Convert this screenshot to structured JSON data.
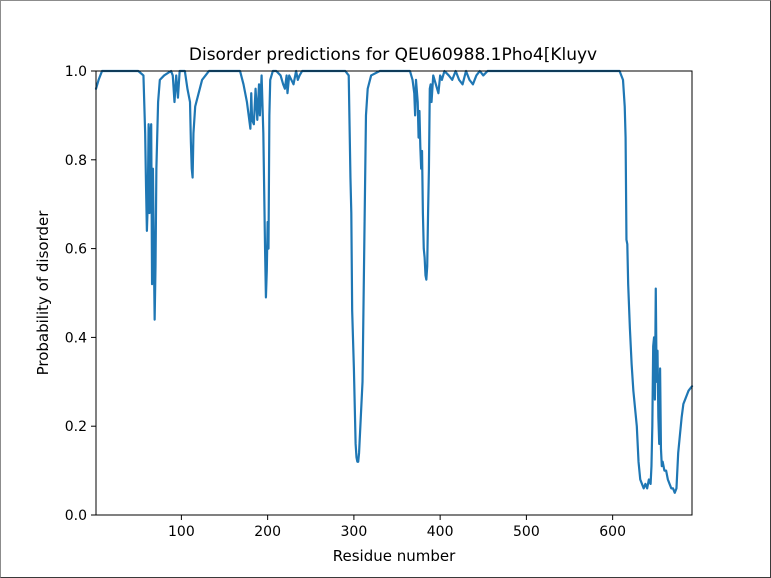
{
  "chart_data": {
    "type": "line",
    "title": "Disorder predictions for QEU60988.1Pho4[Kluyv",
    "xlabel": "Residue number",
    "ylabel": "Probability of disorder",
    "xlim": [
      1,
      692
    ],
    "ylim": [
      0.0,
      1.0
    ],
    "xticks": [
      100,
      200,
      300,
      400,
      500,
      600
    ],
    "yticks": [
      0.0,
      0.2,
      0.4,
      0.6,
      0.8,
      1.0
    ],
    "grid": false,
    "legend": "none",
    "series": [
      {
        "color": "#1f77b4",
        "points": [
          [
            1,
            0.96
          ],
          [
            4,
            0.98
          ],
          [
            8,
            1.0
          ],
          [
            50,
            1.0
          ],
          [
            56,
            0.99
          ],
          [
            58,
            0.86
          ],
          [
            59,
            0.74
          ],
          [
            60,
            0.64
          ],
          [
            61,
            0.7
          ],
          [
            62,
            0.88
          ],
          [
            63,
            0.68
          ],
          [
            64,
            0.86
          ],
          [
            65,
            0.88
          ],
          [
            66,
            0.52
          ],
          [
            67,
            0.78
          ],
          [
            68,
            0.6
          ],
          [
            69,
            0.44
          ],
          [
            70,
            0.56
          ],
          [
            71,
            0.78
          ],
          [
            73,
            0.93
          ],
          [
            75,
            0.98
          ],
          [
            80,
            0.99
          ],
          [
            88,
            1.0
          ],
          [
            90,
            0.99
          ],
          [
            92,
            0.93
          ],
          [
            94,
            0.99
          ],
          [
            96,
            0.94
          ],
          [
            98,
            1.0
          ],
          [
            104,
            1.0
          ],
          [
            107,
            0.96
          ],
          [
            110,
            0.93
          ],
          [
            111,
            0.84
          ],
          [
            112,
            0.78
          ],
          [
            113,
            0.76
          ],
          [
            114,
            0.86
          ],
          [
            116,
            0.92
          ],
          [
            120,
            0.95
          ],
          [
            124,
            0.98
          ],
          [
            128,
            0.99
          ],
          [
            132,
            1.0
          ],
          [
            168,
            1.0
          ],
          [
            172,
            0.97
          ],
          [
            176,
            0.93
          ],
          [
            178,
            0.9
          ],
          [
            180,
            0.87
          ],
          [
            181,
            0.95
          ],
          [
            182,
            0.89
          ],
          [
            184,
            0.88
          ],
          [
            186,
            0.96
          ],
          [
            188,
            0.89
          ],
          [
            190,
            0.97
          ],
          [
            191,
            0.9
          ],
          [
            193,
            0.99
          ],
          [
            195,
            0.86
          ],
          [
            197,
            0.6
          ],
          [
            198,
            0.49
          ],
          [
            199,
            0.55
          ],
          [
            200,
            0.66
          ],
          [
            201,
            0.6
          ],
          [
            202,
            0.9
          ],
          [
            203,
            0.98
          ],
          [
            206,
            1.0
          ],
          [
            210,
            1.0
          ],
          [
            215,
            0.99
          ],
          [
            218,
            0.97
          ],
          [
            220,
            0.96
          ],
          [
            222,
            0.99
          ],
          [
            223,
            0.95
          ],
          [
            225,
            0.99
          ],
          [
            230,
            0.97
          ],
          [
            233,
            1.0
          ],
          [
            235,
            0.98
          ],
          [
            237,
            0.99
          ],
          [
            240,
            1.0
          ],
          [
            290,
            1.0
          ],
          [
            294,
            0.99
          ],
          [
            296,
            0.76
          ],
          [
            297,
            0.68
          ],
          [
            298,
            0.46
          ],
          [
            300,
            0.33
          ],
          [
            302,
            0.16
          ],
          [
            303,
            0.13
          ],
          [
            304,
            0.12
          ],
          [
            305,
            0.12
          ],
          [
            306,
            0.14
          ],
          [
            308,
            0.22
          ],
          [
            310,
            0.3
          ],
          [
            312,
            0.6
          ],
          [
            314,
            0.9
          ],
          [
            316,
            0.96
          ],
          [
            320,
            0.99
          ],
          [
            330,
            1.0
          ],
          [
            365,
            1.0
          ],
          [
            368,
            0.98
          ],
          [
            370,
            0.95
          ],
          [
            371,
            0.9
          ],
          [
            372,
            0.98
          ],
          [
            374,
            0.93
          ],
          [
            375,
            0.85
          ],
          [
            376,
            0.91
          ],
          [
            377,
            0.83
          ],
          [
            378,
            0.78
          ],
          [
            379,
            0.82
          ],
          [
            380,
            0.68
          ],
          [
            381,
            0.6
          ],
          [
            382,
            0.58
          ],
          [
            383,
            0.54
          ],
          [
            384,
            0.53
          ],
          [
            385,
            0.56
          ],
          [
            386,
            0.68
          ],
          [
            387,
            0.78
          ],
          [
            388,
            0.96
          ],
          [
            389,
            0.97
          ],
          [
            390,
            0.93
          ],
          [
            392,
            0.99
          ],
          [
            395,
            0.97
          ],
          [
            398,
            0.95
          ],
          [
            400,
            0.99
          ],
          [
            402,
            0.98
          ],
          [
            405,
            1.0
          ],
          [
            410,
            0.99
          ],
          [
            414,
            0.98
          ],
          [
            418,
            1.0
          ],
          [
            422,
            0.98
          ],
          [
            426,
            0.97
          ],
          [
            430,
            1.0
          ],
          [
            434,
            0.98
          ],
          [
            438,
            0.97
          ],
          [
            442,
            0.99
          ],
          [
            446,
            1.0
          ],
          [
            450,
            0.99
          ],
          [
            455,
            1.0
          ],
          [
            520,
            1.0
          ],
          [
            540,
            1.0
          ],
          [
            560,
            1.0
          ],
          [
            580,
            1.0
          ],
          [
            600,
            1.0
          ],
          [
            608,
            1.0
          ],
          [
            612,
            0.98
          ],
          [
            614,
            0.92
          ],
          [
            615,
            0.85
          ],
          [
            616,
            0.62
          ],
          [
            617,
            0.61
          ],
          [
            618,
            0.52
          ],
          [
            620,
            0.42
          ],
          [
            622,
            0.34
          ],
          [
            624,
            0.28
          ],
          [
            626,
            0.24
          ],
          [
            628,
            0.2
          ],
          [
            630,
            0.12
          ],
          [
            632,
            0.08
          ],
          [
            634,
            0.07
          ],
          [
            636,
            0.06
          ],
          [
            638,
            0.07
          ],
          [
            640,
            0.06
          ],
          [
            642,
            0.08
          ],
          [
            644,
            0.07
          ],
          [
            645,
            0.11
          ],
          [
            646,
            0.2
          ],
          [
            647,
            0.38
          ],
          [
            648,
            0.4
          ],
          [
            649,
            0.26
          ],
          [
            650,
            0.51
          ],
          [
            651,
            0.3
          ],
          [
            652,
            0.37
          ],
          [
            653,
            0.22
          ],
          [
            654,
            0.16
          ],
          [
            655,
            0.33
          ],
          [
            656,
            0.15
          ],
          [
            657,
            0.11
          ],
          [
            658,
            0.12
          ],
          [
            660,
            0.1
          ],
          [
            662,
            0.1
          ],
          [
            664,
            0.08
          ],
          [
            666,
            0.07
          ],
          [
            668,
            0.06
          ],
          [
            670,
            0.06
          ],
          [
            672,
            0.05
          ],
          [
            674,
            0.06
          ],
          [
            676,
            0.14
          ],
          [
            678,
            0.18
          ],
          [
            680,
            0.22
          ],
          [
            682,
            0.25
          ],
          [
            684,
            0.26
          ],
          [
            686,
            0.27
          ],
          [
            688,
            0.28
          ],
          [
            690,
            0.285
          ],
          [
            692,
            0.29
          ]
        ]
      }
    ]
  }
}
